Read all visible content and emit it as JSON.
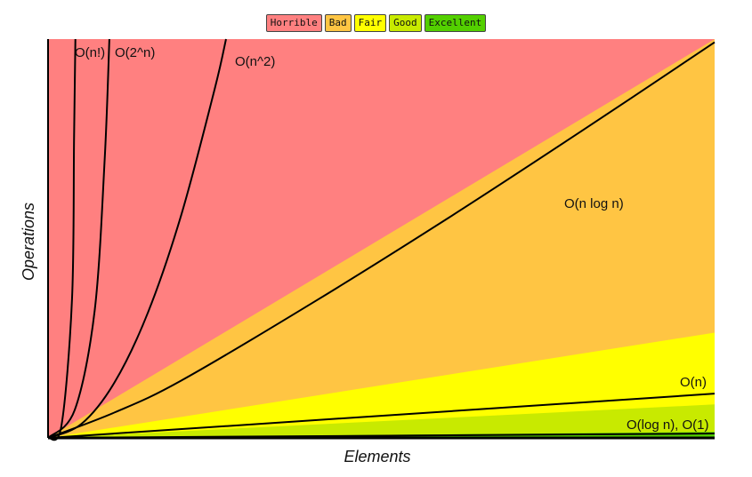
{
  "chart_data": {
    "type": "area",
    "title": "",
    "xlabel": "Elements",
    "ylabel": "Operations",
    "xlim": [
      0,
      100
    ],
    "ylim": [
      0,
      100
    ],
    "grid": false,
    "legend_position": "top-center",
    "legend": [
      {
        "name": "Horrible",
        "color": "#ff8080"
      },
      {
        "name": "Bad",
        "color": "#ffc543"
      },
      {
        "name": "Fair",
        "color": "#ffff00"
      },
      {
        "name": "Good",
        "color": "#c8ea00"
      },
      {
        "name": "Excellent",
        "color": "#53d000"
      }
    ],
    "regions": [
      {
        "name": "Horrible",
        "color": "#ff8080",
        "top_at_x100": 100
      },
      {
        "name": "Bad",
        "color": "#ffc543",
        "top_at_x100": 100
      },
      {
        "name": "Fair",
        "color": "#ffff00",
        "top_at_x100": 26.4
      },
      {
        "name": "Good",
        "color": "#c8ea00",
        "top_at_x100": 8.4
      },
      {
        "name": "Excellent",
        "color": "#53d000",
        "top_at_x100": 1.5
      }
    ],
    "series": [
      {
        "name": "O(n!)",
        "x": [
          0,
          2,
          3.6,
          3.9,
          4.1
        ],
        "y": [
          0,
          3,
          35,
          75,
          100
        ]
      },
      {
        "name": "O(2^n)",
        "x": [
          0,
          4,
          7,
          8.5,
          9.2
        ],
        "y": [
          0,
          7,
          32,
          70,
          100
        ]
      },
      {
        "name": "O(n^2)",
        "x": [
          0,
          5,
          10,
          15,
          20,
          25,
          26.7
        ],
        "y": [
          0,
          3.5,
          14,
          31.5,
          56,
          87.5,
          100
        ]
      },
      {
        "name": "O(n log n)",
        "x": [
          0,
          10,
          20,
          40,
          60,
          80,
          100
        ],
        "y": [
          0,
          6.4,
          14.4,
          34.2,
          55.1,
          76.9,
          99.2
        ]
      },
      {
        "name": "O(n)",
        "x": [
          0,
          100
        ],
        "y": [
          0,
          11.1
        ]
      },
      {
        "name": "O(log n), O(1)",
        "x": [
          0,
          100
        ],
        "y": [
          0,
          1.1
        ]
      }
    ]
  }
}
